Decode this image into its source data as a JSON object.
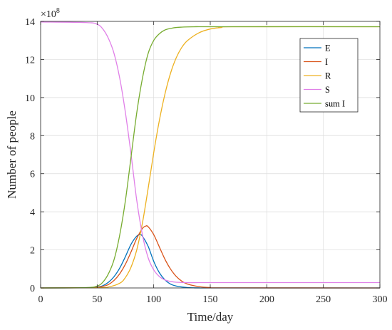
{
  "chart_data": {
    "type": "line",
    "title": "",
    "xlabel": "Time/day",
    "ylabel": "Number of people",
    "y_multiplier_base": "×10",
    "y_multiplier_exp": "8",
    "xlim": [
      0,
      300
    ],
    "ylim": [
      0,
      14
    ],
    "x_ticks": [
      0,
      50,
      100,
      150,
      200,
      250,
      300
    ],
    "y_ticks": [
      0,
      2,
      4,
      6,
      8,
      10,
      12,
      14
    ],
    "grid": true,
    "legend_position": "top-right",
    "series": [
      {
        "name": "E",
        "color": "#0072BD",
        "x": [
          0,
          40,
          50,
          55,
          60,
          65,
          70,
          75,
          80,
          85,
          88,
          90,
          95,
          100,
          105,
          110,
          115,
          120,
          125,
          130,
          140,
          150,
          300
        ],
        "y": [
          0,
          0.01,
          0.05,
          0.12,
          0.3,
          0.6,
          1.05,
          1.65,
          2.3,
          2.72,
          2.8,
          2.72,
          2.2,
          1.4,
          0.8,
          0.42,
          0.2,
          0.1,
          0.05,
          0.02,
          0.005,
          0,
          0
        ]
      },
      {
        "name": "I",
        "color": "#D95319",
        "x": [
          0,
          40,
          50,
          55,
          60,
          65,
          70,
          75,
          80,
          85,
          90,
          93,
          95,
          100,
          105,
          110,
          115,
          120,
          125,
          130,
          140,
          150,
          160,
          300
        ],
        "y": [
          0,
          0.01,
          0.03,
          0.08,
          0.18,
          0.4,
          0.75,
          1.25,
          1.9,
          2.6,
          3.12,
          3.25,
          3.22,
          2.8,
          2.15,
          1.5,
          0.98,
          0.6,
          0.35,
          0.2,
          0.07,
          0.02,
          0.005,
          0
        ]
      },
      {
        "name": "R",
        "color": "#EDB120",
        "x": [
          0,
          50,
          60,
          70,
          75,
          80,
          85,
          90,
          95,
          100,
          105,
          110,
          115,
          120,
          125,
          130,
          140,
          150,
          160,
          170,
          300
        ],
        "y": [
          0,
          0.01,
          0.05,
          0.25,
          0.55,
          1.1,
          2.0,
          3.4,
          5.2,
          7.1,
          8.8,
          10.2,
          11.3,
          12.1,
          12.65,
          13.0,
          13.4,
          13.6,
          13.68,
          13.72,
          13.72
        ]
      },
      {
        "name": "S",
        "color": "#E080E8",
        "x": [
          0,
          40,
          50,
          55,
          60,
          65,
          70,
          75,
          80,
          85,
          90,
          95,
          100,
          105,
          110,
          115,
          120,
          130,
          140,
          150,
          300
        ],
        "y": [
          13.97,
          13.94,
          13.85,
          13.6,
          13.1,
          12.3,
          11.0,
          9.2,
          7.0,
          4.6,
          2.8,
          1.6,
          0.95,
          0.6,
          0.42,
          0.34,
          0.3,
          0.28,
          0.28,
          0.28,
          0.28
        ]
      },
      {
        "name": "sum I",
        "color": "#77AC30",
        "x": [
          0,
          40,
          50,
          55,
          60,
          65,
          70,
          75,
          80,
          85,
          90,
          95,
          100,
          105,
          110,
          115,
          120,
          130,
          140,
          150,
          300
        ],
        "y": [
          0,
          0.02,
          0.1,
          0.3,
          0.75,
          1.5,
          2.8,
          4.6,
          6.9,
          9.2,
          11.0,
          12.3,
          13.0,
          13.35,
          13.55,
          13.63,
          13.68,
          13.71,
          13.72,
          13.72,
          13.72
        ]
      }
    ]
  }
}
